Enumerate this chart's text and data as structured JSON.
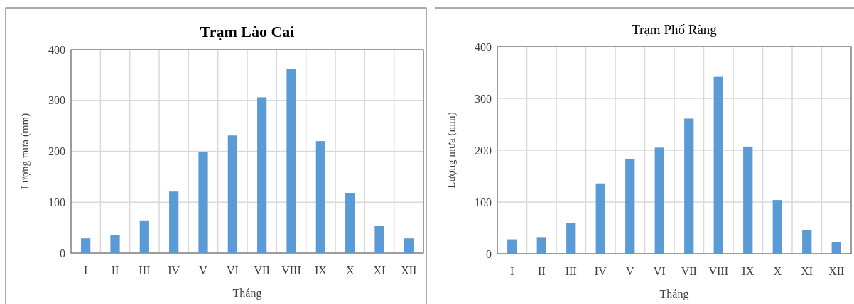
{
  "chart_data": [
    {
      "type": "bar",
      "title": "Trạm Lào Cai",
      "xlabel": "Tháng",
      "ylabel": "Lượng mưa (mm)",
      "categories": [
        "I",
        "II",
        "III",
        "IV",
        "V",
        "VI",
        "VII",
        "VIII",
        "IX",
        "X",
        "XI",
        "XII"
      ],
      "values": [
        29,
        36,
        63,
        121,
        199,
        231,
        306,
        361,
        220,
        118,
        53,
        29
      ],
      "color": "#5b9bd5",
      "ylim": [
        0,
        400
      ],
      "yticks": [
        0,
        100,
        200,
        300,
        400
      ],
      "grid": true
    },
    {
      "type": "bar",
      "title": "Trạm Phố Ràng",
      "xlabel": "Tháng",
      "ylabel": "Lượng mưa (mm)",
      "categories": [
        "I",
        "II",
        "III",
        "IV",
        "V",
        "VI",
        "VII",
        "VIII",
        "IX",
        "X",
        "XI",
        "XII"
      ],
      "values": [
        28,
        31,
        59,
        136,
        183,
        205,
        261,
        343,
        207,
        104,
        46,
        22
      ],
      "color": "#5b9bd5",
      "ylim": [
        0,
        400
      ],
      "yticks": [
        0,
        100,
        200,
        300,
        400
      ],
      "grid": true
    }
  ]
}
